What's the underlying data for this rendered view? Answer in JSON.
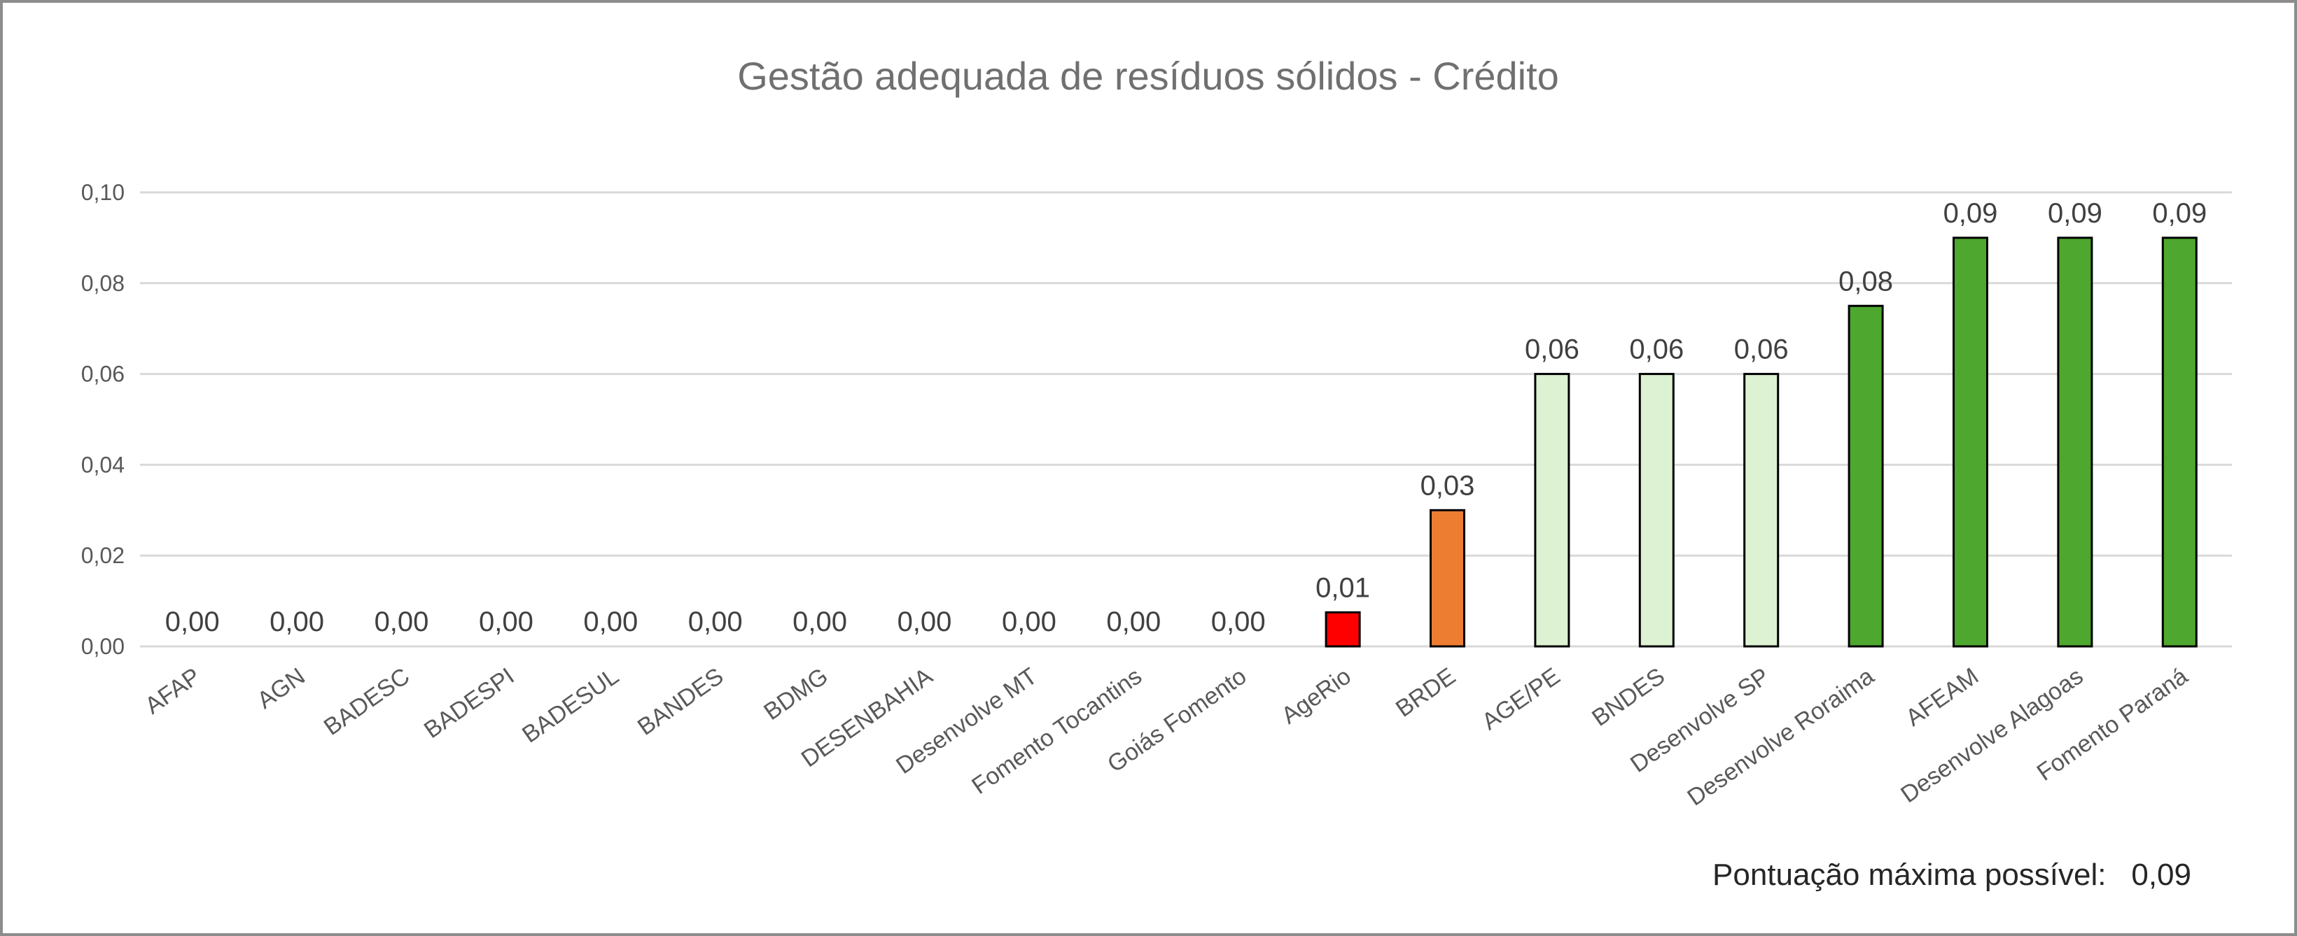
{
  "chart_data": {
    "type": "bar",
    "title": "Gestão adequada de resíduos sólidos - Crédito",
    "xlabel": "",
    "ylabel": "",
    "ylim": [
      0,
      0.1
    ],
    "yticks": [
      "0,00",
      "0,02",
      "0,04",
      "0,06",
      "0,08",
      "0,10"
    ],
    "grid": true,
    "legend": "none",
    "categories": [
      "AFAP",
      "AGN",
      "BADESC",
      "BADESPI",
      "BADESUL",
      "BANDES",
      "BDMG",
      "DESENBAHIA",
      "Desenvolve MT",
      "Fomento Tocantins",
      "Goiás Fomento",
      "AgeRio",
      "BRDE",
      "AGE/PE",
      "BNDES",
      "Desenvolve SP",
      "Desenvolve Roraima",
      "AFEAM",
      "Desenvolve Alagoas",
      "Fomento Paraná"
    ],
    "values": [
      0,
      0,
      0,
      0,
      0,
      0,
      0,
      0,
      0,
      0,
      0,
      0.0075,
      0.03,
      0.06,
      0.06,
      0.06,
      0.075,
      0.09,
      0.09,
      0.09
    ],
    "data_labels": [
      "0,00",
      "0,00",
      "0,00",
      "0,00",
      "0,00",
      "0,00",
      "0,00",
      "0,00",
      "0,00",
      "0,00",
      "0,00",
      "0,01",
      "0,03",
      "0,06",
      "0,06",
      "0,06",
      "0,08",
      "0,09",
      "0,09",
      "0,09"
    ],
    "bar_colors": [
      "#ff0000",
      "#ff0000",
      "#ff0000",
      "#ff0000",
      "#ff0000",
      "#ff0000",
      "#ff0000",
      "#ff0000",
      "#ff0000",
      "#ff0000",
      "#ff0000",
      "#ff0000",
      "#ed7d31",
      "#dcf2d3",
      "#dcf2d3",
      "#dcf2d3",
      "#4ea72e",
      "#4ea72e",
      "#4ea72e",
      "#4ea72e"
    ],
    "note": {
      "label": "Pontuação máxima possível:",
      "value": "0,09"
    }
  }
}
